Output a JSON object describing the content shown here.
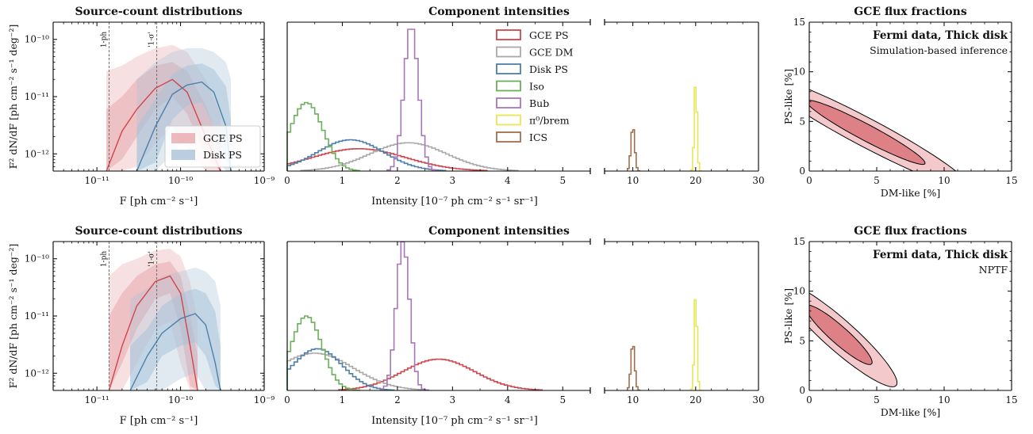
{
  "colors": {
    "gce_ps": "#d0454c",
    "gce_dm": "#a9a9a9",
    "disk_ps": "#4e7fa8",
    "iso": "#6aaf5a",
    "bub": "#a776b8",
    "pi0": "#e8e655",
    "ics": "#a06f4d",
    "band_gce": "#e8a7ab",
    "band_disk": "#a9c2d8"
  },
  "chart_data": [
    {
      "id": "scd-top",
      "type": "area",
      "title": "Source-count distributions",
      "xlabel": "F [ph cm⁻² s⁻¹]",
      "ylabel": "F² dN/dF [ph cm⁻² s⁻¹ deg⁻²]",
      "xscale": "log",
      "yscale": "log",
      "xlim": [
        3e-12,
        1e-09
      ],
      "ylim": [
        5e-13,
        2e-10
      ],
      "xticks": [
        "10⁻¹¹",
        "10⁻¹⁰",
        "10⁻⁹"
      ],
      "yticks": [
        "10⁻¹²",
        "10⁻¹¹",
        "10⁻¹⁰"
      ],
      "vlines": [
        {
          "x": 1.4e-11,
          "label": "1-ph"
        },
        {
          "x": 5.2e-11,
          "label": "'1-σ'"
        }
      ],
      "legend": [
        "GCE PS",
        "Disk PS"
      ],
      "legend_position": "lower-right",
      "series": [
        {
          "name": "GCE PS",
          "color": "gce_ps",
          "x": [
            1.3e-11,
            2e-11,
            3e-11,
            5e-11,
            8e-11,
            1.2e-10,
            2e-10,
            3e-10
          ],
          "median": [
            5e-13,
            2.5e-12,
            6e-12,
            1.4e-11,
            2e-11,
            1.2e-11,
            2e-12,
            5e-13
          ],
          "band68": [
            [
              5e-13,
              6e-12
            ],
            [
              8e-13,
              1e-11
            ],
            [
              2e-12,
              2e-11
            ],
            [
              6e-12,
              3.5e-11
            ],
            [
              1e-11,
              4e-11
            ],
            [
              5e-12,
              2.8e-11
            ],
            [
              9e-13,
              7e-12
            ],
            [
              5e-13,
              1.5e-12
            ]
          ],
          "band95": [
            [
              5e-13,
              2.8e-11
            ],
            [
              5e-13,
              3.5e-11
            ],
            [
              6e-13,
              5e-11
            ],
            [
              1.5e-12,
              7e-11
            ],
            [
              3e-12,
              8e-11
            ],
            [
              1.2e-12,
              6e-11
            ],
            [
              5e-13,
              2e-11
            ],
            [
              5e-13,
              5e-12
            ]
          ]
        },
        {
          "name": "Disk PS",
          "color": "disk_ps",
          "x": [
            3e-11,
            5e-11,
            8e-11,
            1.2e-10,
            1.8e-10,
            2.5e-10,
            3.5e-10,
            4e-10
          ],
          "median": [
            5e-13,
            3e-12,
            1.1e-11,
            1.6e-11,
            1.8e-11,
            1.2e-11,
            3e-12,
            5e-13
          ],
          "band68": [
            [
              5e-13,
              3e-12
            ],
            [
              7e-13,
              9e-12
            ],
            [
              4e-12,
              2.5e-11
            ],
            [
              7e-12,
              3.5e-11
            ],
            [
              8e-12,
              3.8e-11
            ],
            [
              3e-12,
              3e-11
            ],
            [
              8e-13,
              1.5e-11
            ],
            [
              5e-13,
              4e-12
            ]
          ],
          "band95": [
            [
              5e-13,
              2e-11
            ],
            [
              5e-13,
              4e-11
            ],
            [
              1e-12,
              6e-11
            ],
            [
              2e-12,
              7e-11
            ],
            [
              2.5e-12,
              7e-11
            ],
            [
              1e-12,
              6e-11
            ],
            [
              5e-13,
              4e-11
            ],
            [
              5e-13,
              2e-11
            ]
          ]
        }
      ]
    },
    {
      "id": "int-top",
      "type": "histogram",
      "title": "Component intensities",
      "xlabel": "Intensity [10⁻⁷ ph cm⁻² s⁻¹ sr⁻¹]",
      "broken_axis": true,
      "xlim_left": [
        0,
        5.5
      ],
      "xlim_right": [
        5.5,
        30
      ],
      "xticks_left": [
        0,
        1,
        2,
        3,
        4,
        5
      ],
      "xticks_right": [
        10,
        20,
        30
      ],
      "legend": [
        "GCE PS",
        "GCE DM",
        "Disk PS",
        "Iso",
        "Bub",
        "π⁰/brem",
        "ICS"
      ],
      "series": [
        {
          "name": "GCE PS",
          "color": "gce_ps",
          "shape": "gauss",
          "mu": 1.3,
          "sigma": 0.85,
          "peak": 0.15
        },
        {
          "name": "GCE DM",
          "color": "gce_dm",
          "shape": "gauss",
          "mu": 2.2,
          "sigma": 0.7,
          "peak": 0.19
        },
        {
          "name": "Disk PS",
          "color": "disk_ps",
          "shape": "gauss",
          "mu": 1.15,
          "sigma": 0.6,
          "peak": 0.21
        },
        {
          "name": "Iso",
          "color": "iso",
          "shape": "gauss",
          "mu": 0.35,
          "sigma": 0.3,
          "peak": 0.46
        },
        {
          "name": "Bub",
          "color": "bub",
          "shape": "gauss",
          "mu": 2.25,
          "sigma": 0.13,
          "peak": 0.98
        },
        {
          "name": "π⁰/brem",
          "color": "pi0",
          "shape": "gauss",
          "mu": 20.0,
          "sigma": 0.22,
          "peak": 0.6
        },
        {
          "name": "ICS",
          "color": "ics",
          "shape": "gauss",
          "mu": 10.0,
          "sigma": 0.3,
          "peak": 0.3
        }
      ]
    },
    {
      "id": "flux-top",
      "type": "contour",
      "title": "GCE flux fractions",
      "xlabel": "DM-like [%]",
      "ylabel": "PS-like [%]",
      "xlim": [
        0,
        15
      ],
      "ylim": [
        0,
        15
      ],
      "xticks": [
        0,
        5,
        10,
        15
      ],
      "yticks": [
        0,
        5,
        10,
        15
      ],
      "annotation_bold": "Fermi data, Thick disk",
      "annotation_sub": "Simulation-based inference",
      "ellipse": {
        "center": [
          4.2,
          3.9
        ],
        "angle_deg": -36,
        "semi_major": 5.4,
        "semi_minor": 0.75,
        "levels": [
          1,
          1.75
        ]
      }
    },
    {
      "id": "scd-bot",
      "type": "area",
      "title": "Source-count distributions",
      "xlabel": "F [ph cm⁻² s⁻¹]",
      "ylabel": "F² dN/dF [ph cm⁻² s⁻¹ deg⁻²]",
      "xscale": "log",
      "yscale": "log",
      "xlim": [
        3e-12,
        1e-09
      ],
      "ylim": [
        5e-13,
        2e-10
      ],
      "xticks": [
        "10⁻¹¹",
        "10⁻¹⁰",
        "10⁻⁹"
      ],
      "yticks": [
        "10⁻¹²",
        "10⁻¹¹",
        "10⁻¹⁰"
      ],
      "vlines": [
        {
          "x": 1.4e-11,
          "label": "1-ph"
        },
        {
          "x": 5.2e-11,
          "label": "'1-σ'"
        }
      ],
      "series": [
        {
          "name": "GCE PS",
          "color": "gce_ps",
          "x": [
            1.4e-11,
            2e-11,
            3e-11,
            5e-11,
            7.5e-11,
            1e-10,
            1.3e-10,
            1.6e-10
          ],
          "median": [
            5e-13,
            3e-12,
            1.5e-11,
            4e-11,
            5e-11,
            2.5e-11,
            3e-12,
            5e-13
          ],
          "band68": [
            [
              5e-13,
              1e-11
            ],
            [
              1.5e-12,
              2.5e-11
            ],
            [
              6e-12,
              5e-11
            ],
            [
              2e-11,
              8e-11
            ],
            [
              2.5e-11,
              9e-11
            ],
            [
              6e-12,
              5e-11
            ],
            [
              6e-13,
              1e-11
            ],
            [
              5e-13,
              2e-12
            ]
          ],
          "band95": [
            [
              5e-13,
              5e-11
            ],
            [
              5e-13,
              8e-11
            ],
            [
              1.5e-12,
              1e-10
            ],
            [
              6e-12,
              1.4e-10
            ],
            [
              8e-12,
              1.5e-10
            ],
            [
              1.5e-12,
              1.1e-10
            ],
            [
              5e-13,
              4e-11
            ],
            [
              5e-13,
              8e-12
            ]
          ]
        },
        {
          "name": "Disk PS",
          "color": "disk_ps",
          "x": [
            2.5e-11,
            4e-11,
            6e-11,
            1e-10,
            1.5e-10,
            2e-10,
            2.6e-10,
            3e-10
          ],
          "median": [
            5e-13,
            2e-12,
            5e-12,
            9e-12,
            1.1e-11,
            7e-12,
            1.5e-12,
            5e-13
          ],
          "band68": [
            [
              5e-13,
              3e-12
            ],
            [
              7e-13,
              6e-12
            ],
            [
              2e-12,
              1.5e-11
            ],
            [
              3e-12,
              2.5e-11
            ],
            [
              3.5e-12,
              3e-11
            ],
            [
              2e-12,
              2.5e-11
            ],
            [
              6e-13,
              1.2e-11
            ],
            [
              5e-13,
              3e-12
            ]
          ],
          "band95": [
            [
              5e-13,
              2e-11
            ],
            [
              5e-13,
              3e-11
            ],
            [
              5e-13,
              5e-11
            ],
            [
              8e-13,
              6e-11
            ],
            [
              1e-12,
              7e-11
            ],
            [
              5e-13,
              6e-11
            ],
            [
              5e-13,
              4e-11
            ],
            [
              5e-13,
              1.5e-11
            ]
          ]
        }
      ]
    },
    {
      "id": "int-bot",
      "type": "histogram",
      "title": "Component intensities",
      "xlabel": "Intensity [10⁻⁷ ph cm⁻² s⁻¹ sr⁻¹]",
      "broken_axis": true,
      "xlim_left": [
        0,
        5.5
      ],
      "xlim_right": [
        5.5,
        30
      ],
      "xticks_left": [
        0,
        1,
        2,
        3,
        4,
        5
      ],
      "xticks_right": [
        10,
        20,
        30
      ],
      "series": [
        {
          "name": "GCE PS",
          "color": "gce_ps",
          "shape": "gauss",
          "mu": 2.75,
          "sigma": 0.65,
          "peak": 0.21
        },
        {
          "name": "GCE DM",
          "color": "gce_dm",
          "shape": "gauss",
          "mu": 0.5,
          "sigma": 0.7,
          "peak": 0.25
        },
        {
          "name": "Disk PS",
          "color": "disk_ps",
          "shape": "gauss",
          "mu": 0.55,
          "sigma": 0.45,
          "peak": 0.28
        },
        {
          "name": "Iso",
          "color": "iso",
          "shape": "gauss",
          "mu": 0.35,
          "sigma": 0.28,
          "peak": 0.5
        },
        {
          "name": "Bub",
          "color": "bub",
          "shape": "gauss",
          "mu": 2.1,
          "sigma": 0.12,
          "peak": 1.0
        },
        {
          "name": "π⁰/brem",
          "color": "pi0",
          "shape": "gauss",
          "mu": 20.0,
          "sigma": 0.22,
          "peak": 0.65
        },
        {
          "name": "ICS",
          "color": "ics",
          "shape": "gauss",
          "mu": 10.0,
          "sigma": 0.3,
          "peak": 0.32
        }
      ]
    },
    {
      "id": "flux-bot",
      "type": "contour",
      "title": "GCE flux fractions",
      "xlabel": "DM-like [%]",
      "ylabel": "PS-like [%]",
      "xlim": [
        0,
        15
      ],
      "ylim": [
        0,
        15
      ],
      "xticks": [
        0,
        5,
        10,
        15
      ],
      "yticks": [
        0,
        5,
        10,
        15
      ],
      "annotation_bold": "Fermi data, Thick disk",
      "annotation_sub": "NPTF",
      "ellipse": {
        "center": [
          2.2,
          5.6
        ],
        "angle_deg": -51,
        "semi_major": 3.8,
        "semi_minor": 0.75,
        "levels": [
          1,
          1.75
        ]
      }
    }
  ]
}
